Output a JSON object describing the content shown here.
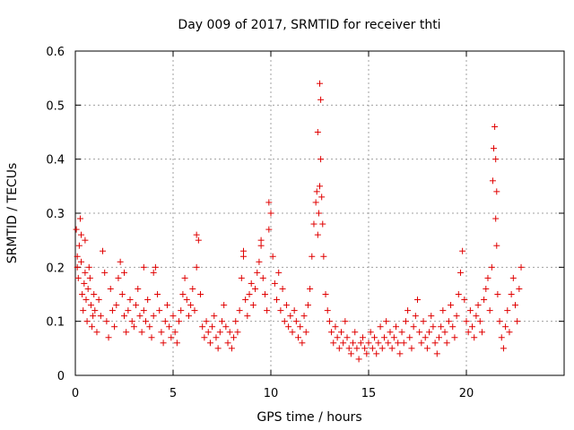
{
  "chart_data": {
    "type": "scatter",
    "title": "Day 009 of 2017, SRMTID for receiver thti",
    "xlabel": "GPS time / hours",
    "ylabel": "SRMTID / TECUs",
    "xlim": [
      0,
      25
    ],
    "ylim": [
      0,
      0.6
    ],
    "xticks": [
      0,
      5,
      10,
      15,
      20
    ],
    "xtick_labels": [
      "0",
      "5",
      "10",
      "15",
      "20"
    ],
    "yticks": [
      0,
      0.1,
      0.2,
      0.3,
      0.4,
      0.5,
      0.6
    ],
    "ytick_labels": [
      "0",
      "0.1",
      "0.2",
      "0.3",
      "0.4",
      "0.5",
      "0.6"
    ],
    "grid": true,
    "marker": "+",
    "marker_color": "#e00000",
    "series": [
      {
        "name": "SRMTID",
        "x": [
          0.05,
          0.1,
          0.15,
          0.2,
          0.25,
          0.3,
          0.35,
          0.4,
          0.45,
          0.5,
          0.55,
          0.6,
          0.65,
          0.7,
          0.75,
          0.8,
          0.85,
          0.9,
          0.95,
          1.0,
          1.1,
          1.2,
          1.3,
          1.4,
          1.5,
          1.6,
          1.7,
          1.8,
          1.9,
          2.0,
          2.1,
          2.2,
          2.3,
          2.4,
          2.5,
          2.6,
          2.7,
          2.8,
          2.9,
          3.0,
          3.1,
          3.2,
          3.3,
          3.4,
          3.5,
          3.6,
          3.7,
          3.8,
          3.9,
          4.0,
          4.1,
          4.2,
          4.3,
          4.4,
          4.5,
          4.6,
          4.7,
          4.8,
          4.9,
          5.0,
          5.1,
          5.2,
          5.3,
          5.4,
          5.5,
          5.6,
          5.7,
          5.8,
          5.9,
          6.0,
          6.1,
          6.2,
          6.3,
          6.4,
          6.5,
          6.6,
          6.7,
          6.8,
          6.9,
          7.0,
          7.1,
          7.2,
          7.3,
          7.4,
          7.5,
          7.6,
          7.7,
          7.8,
          7.9,
          8.0,
          8.1,
          8.2,
          8.3,
          8.4,
          8.5,
          8.6,
          8.7,
          8.8,
          8.9,
          9.0,
          9.1,
          9.2,
          9.3,
          9.4,
          9.5,
          9.6,
          9.7,
          9.8,
          9.9,
          10.0,
          10.1,
          10.2,
          10.3,
          10.4,
          10.5,
          10.6,
          10.7,
          10.8,
          10.9,
          11.0,
          11.1,
          11.2,
          11.3,
          11.4,
          11.5,
          11.6,
          11.7,
          11.8,
          11.9,
          12.0,
          12.1,
          12.2,
          12.3,
          12.35,
          12.4,
          12.45,
          12.5,
          12.55,
          12.6,
          12.65,
          12.7,
          12.8,
          12.9,
          13.0,
          13.1,
          13.2,
          13.3,
          13.4,
          13.5,
          13.6,
          13.7,
          13.8,
          13.9,
          14.0,
          14.1,
          14.2,
          14.3,
          14.4,
          14.5,
          14.6,
          14.7,
          14.8,
          14.9,
          15.0,
          15.1,
          15.2,
          15.3,
          15.4,
          15.5,
          15.6,
          15.7,
          15.8,
          15.9,
          16.0,
          16.1,
          16.2,
          16.3,
          16.4,
          16.5,
          16.6,
          16.7,
          16.8,
          16.9,
          17.0,
          17.1,
          17.2,
          17.3,
          17.4,
          17.5,
          17.6,
          17.7,
          17.8,
          17.9,
          18.0,
          18.1,
          18.2,
          18.3,
          18.4,
          18.5,
          18.6,
          18.7,
          18.8,
          18.9,
          19.0,
          19.1,
          19.2,
          19.3,
          19.4,
          19.5,
          19.6,
          19.7,
          19.8,
          19.9,
          20.0,
          20.1,
          20.2,
          20.3,
          20.4,
          20.5,
          20.6,
          20.7,
          20.8,
          20.9,
          21.0,
          21.1,
          21.2,
          21.3,
          21.35,
          21.4,
          21.45,
          21.5,
          21.55,
          21.6,
          21.7,
          21.8,
          21.9,
          22.0,
          22.1,
          22.2,
          22.3,
          22.4,
          22.5,
          22.6,
          22.7,
          22.8,
          0.1,
          0.3,
          0.5,
          2.5,
          3.5,
          4.0,
          6.2,
          8.6,
          9.5,
          9.9,
          12.4,
          12.5,
          12.55,
          21.5,
          21.55
        ],
        "y": [
          0.27,
          0.22,
          0.18,
          0.24,
          0.29,
          0.21,
          0.15,
          0.12,
          0.17,
          0.19,
          0.14,
          0.1,
          0.16,
          0.2,
          0.18,
          0.13,
          0.09,
          0.11,
          0.15,
          0.12,
          0.08,
          0.14,
          0.11,
          0.23,
          0.19,
          0.1,
          0.07,
          0.16,
          0.12,
          0.09,
          0.13,
          0.18,
          0.21,
          0.15,
          0.11,
          0.08,
          0.12,
          0.14,
          0.1,
          0.09,
          0.13,
          0.16,
          0.11,
          0.08,
          0.12,
          0.1,
          0.14,
          0.09,
          0.07,
          0.11,
          0.2,
          0.15,
          0.12,
          0.08,
          0.06,
          0.1,
          0.13,
          0.09,
          0.07,
          0.11,
          0.08,
          0.06,
          0.1,
          0.12,
          0.15,
          0.18,
          0.14,
          0.11,
          0.13,
          0.16,
          0.12,
          0.2,
          0.25,
          0.15,
          0.09,
          0.07,
          0.1,
          0.08,
          0.06,
          0.09,
          0.11,
          0.07,
          0.05,
          0.08,
          0.1,
          0.13,
          0.09,
          0.06,
          0.08,
          0.05,
          0.07,
          0.1,
          0.08,
          0.12,
          0.18,
          0.22,
          0.14,
          0.11,
          0.15,
          0.17,
          0.13,
          0.16,
          0.19,
          0.21,
          0.24,
          0.18,
          0.15,
          0.12,
          0.27,
          0.3,
          0.22,
          0.17,
          0.14,
          0.19,
          0.12,
          0.16,
          0.1,
          0.13,
          0.09,
          0.11,
          0.08,
          0.12,
          0.1,
          0.07,
          0.09,
          0.06,
          0.11,
          0.08,
          0.13,
          0.16,
          0.22,
          0.28,
          0.32,
          0.34,
          0.26,
          0.3,
          0.35,
          0.4,
          0.33,
          0.28,
          0.22,
          0.15,
          0.12,
          0.1,
          0.08,
          0.06,
          0.09,
          0.07,
          0.05,
          0.08,
          0.06,
          0.1,
          0.07,
          0.05,
          0.04,
          0.06,
          0.08,
          0.05,
          0.03,
          0.06,
          0.07,
          0.05,
          0.04,
          0.06,
          0.08,
          0.05,
          0.07,
          0.04,
          0.06,
          0.09,
          0.05,
          0.07,
          0.1,
          0.06,
          0.08,
          0.05,
          0.07,
          0.09,
          0.06,
          0.04,
          0.08,
          0.06,
          0.1,
          0.12,
          0.07,
          0.05,
          0.09,
          0.11,
          0.14,
          0.08,
          0.06,
          0.1,
          0.07,
          0.05,
          0.08,
          0.11,
          0.09,
          0.06,
          0.04,
          0.07,
          0.09,
          0.12,
          0.08,
          0.06,
          0.1,
          0.13,
          0.09,
          0.07,
          0.11,
          0.15,
          0.19,
          0.23,
          0.14,
          0.1,
          0.08,
          0.12,
          0.09,
          0.07,
          0.11,
          0.13,
          0.1,
          0.08,
          0.14,
          0.16,
          0.18,
          0.12,
          0.2,
          0.36,
          0.42,
          0.46,
          0.29,
          0.24,
          0.15,
          0.1,
          0.07,
          0.05,
          0.09,
          0.12,
          0.08,
          0.15,
          0.18,
          0.13,
          0.1,
          0.16,
          0.2,
          0.2,
          0.26,
          0.25,
          0.19,
          0.2,
          0.19,
          0.26,
          0.23,
          0.25,
          0.32,
          0.45,
          0.54,
          0.51,
          0.4,
          0.34
        ]
      }
    ]
  }
}
